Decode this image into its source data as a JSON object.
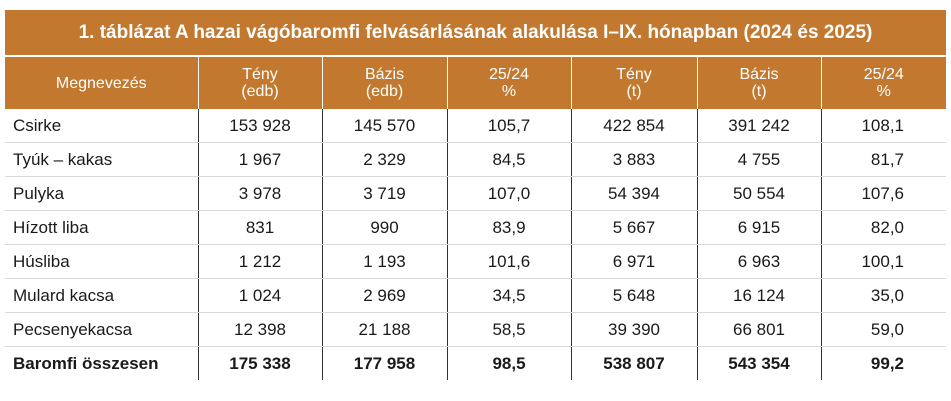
{
  "title": "1. táblázat A hazai vágóbaromfi felvásárlásának alakulása I–IX. hónapban (2024 és 2025)",
  "colors": {
    "header_bg": "#c2782f",
    "header_text": "#ffffff",
    "body_text": "#1a1a1a"
  },
  "columns": [
    {
      "line1": "Megnevezés",
      "line2": ""
    },
    {
      "line1": "Tény",
      "line2": "(edb)"
    },
    {
      "line1": "Bázis",
      "line2": "(edb)"
    },
    {
      "line1": "25/24",
      "line2": "%"
    },
    {
      "line1": "Tény",
      "line2": "(t)"
    },
    {
      "line1": "Bázis",
      "line2": "(t)"
    },
    {
      "line1": "25/24",
      "line2": "%"
    }
  ],
  "rows": [
    [
      "Csirke",
      "153 928",
      "145 570",
      "105,7",
      "422 854",
      "391 242",
      "108,1"
    ],
    [
      "Tyúk – kakas",
      "1 967",
      "2 329",
      "84,5",
      "3 883",
      "4 755",
      "81,7"
    ],
    [
      "Pulyka",
      "3 978",
      "3 719",
      "107,0",
      "54 394",
      "50 554",
      "107,6"
    ],
    [
      "Hízott liba",
      "831",
      "990",
      "83,9",
      "5 667",
      "6 915",
      "82,0"
    ],
    [
      "Húsliba",
      "1 212",
      "1 193",
      "101,6",
      "6 971",
      "6 963",
      "100,1"
    ],
    [
      "Mulard kacsa",
      "1 024",
      "2 969",
      "34,5",
      "5 648",
      "16 124",
      "35,0"
    ],
    [
      "Pecsenyekacsa",
      "12 398",
      "21 188",
      "58,5",
      "39 390",
      "66 801",
      "59,0"
    ],
    [
      "Baromfi összesen",
      "175 338",
      "177 958",
      "98,5",
      "538 807",
      "543 354",
      "99,2"
    ]
  ]
}
